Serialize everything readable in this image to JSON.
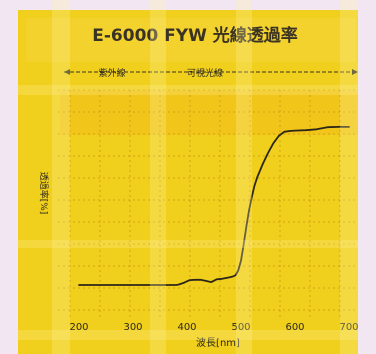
{
  "chart_data": {
    "type": "line",
    "title": "E-6000 FYW 光線透過率",
    "xlabel": "波長[nm]",
    "ylabel": "透過率[%]",
    "xlim": [
      200,
      700
    ],
    "x_ticks": [
      "200",
      "300",
      "400",
      "500",
      "600",
      "700"
    ],
    "regions": [
      {
        "label": "紫外線",
        "from": 200,
        "to": 380
      },
      {
        "label": "可視光線",
        "from": 380,
        "to": 700
      }
    ],
    "grid": true,
    "series": [
      {
        "x": [
          200,
          300,
          380,
          385,
          395,
          405,
          415,
          425,
          435,
          445,
          455,
          465,
          475,
          485,
          490,
          495,
          500,
          505,
          510,
          515,
          520,
          525,
          530,
          540,
          550,
          560,
          570,
          580,
          590,
          600,
          620,
          640,
          660,
          680,
          700
        ],
        "y": [
          0,
          0,
          0,
          0.3,
          1.5,
          3.0,
          3.2,
          3.2,
          2.5,
          1.8,
          3.5,
          3.8,
          4.5,
          5.2,
          6.0,
          9.0,
          15.0,
          25.0,
          36.0,
          46.0,
          54.0,
          61.0,
          66.0,
          74.0,
          81.0,
          87.0,
          91.5,
          94.0,
          94.5,
          94.7,
          95.0,
          95.5,
          96.8,
          97.0,
          97.0
        ]
      }
    ]
  }
}
